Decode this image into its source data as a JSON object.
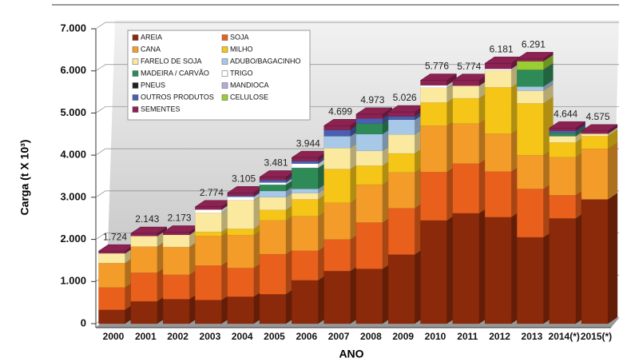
{
  "chart_data": {
    "type": "stacked-bar-3d",
    "y_label": "Carga (t X 10³)",
    "x_label": "ANO",
    "categories": [
      "2000",
      "2001",
      "2002",
      "2003",
      "2004",
      "2005",
      "2006",
      "2007",
      "2008",
      "2009",
      "2010",
      "2011",
      "2012",
      "2013",
      "2014(*)",
      "2015(*)"
    ],
    "ylim": [
      0,
      7000
    ],
    "yticks": [
      0,
      {
        "value": 1000,
        "label": "1.000"
      },
      {
        "value": 2000,
        "label": "2.000"
      },
      {
        "value": 3000,
        "label": "3.000"
      },
      {
        "value": 4000,
        "label": "4.000"
      },
      {
        "value": 5000,
        "label": "5.000"
      },
      {
        "value": 6000,
        "label": "6.000"
      },
      {
        "value": 7000,
        "label": "7.000"
      }
    ],
    "grid": true,
    "series": [
      {
        "name": "AREIA",
        "color": "#8b2a0a",
        "values": [
          330,
          530,
          580,
          560,
          640,
          700,
          1030,
          1250,
          1300,
          1640,
          2450,
          2620,
          2530,
          2050,
          2500,
          2950
        ]
      },
      {
        "name": "SOJA",
        "color": "#e8601c",
        "values": [
          530,
          680,
          580,
          820,
          680,
          950,
          700,
          750,
          1100,
          1100,
          1150,
          1180,
          1080,
          1150,
          550,
          0
        ]
      },
      {
        "name": "CANA",
        "color": "#f39c2a",
        "values": [
          580,
          620,
          660,
          700,
          780,
          800,
          820,
          870,
          900,
          850,
          1100,
          950,
          900,
          800,
          900,
          1200
        ]
      },
      {
        "name": "MILHO",
        "color": "#f5c518",
        "values": [
          0,
          0,
          0,
          100,
          150,
          250,
          400,
          800,
          450,
          450,
          550,
          600,
          1100,
          1230,
          350,
          300
        ]
      },
      {
        "name": "FARELO DE SOJA",
        "color": "#fbe9a0",
        "values": [
          230,
          250,
          290,
          450,
          680,
          300,
          150,
          500,
          350,
          450,
          350,
          300,
          400,
          300,
          150,
          60
        ]
      },
      {
        "name": "ADUBO/BAGACINHO",
        "color": "#a8c8e8",
        "values": [
          0,
          0,
          0,
          0,
          0,
          150,
          100,
          280,
          400,
          350,
          0,
          0,
          0,
          100,
          0,
          0
        ]
      },
      {
        "name": "MADEIRA / CARVÃO",
        "color": "#2e8b57",
        "values": [
          0,
          0,
          0,
          0,
          0,
          150,
          500,
          0,
          250,
          0,
          0,
          0,
          0,
          400,
          80,
          0
        ]
      },
      {
        "name": "TRIGO",
        "color": "#ffffff",
        "values": [
          0,
          0,
          0,
          80,
          80,
          50,
          100,
          0,
          0,
          0,
          60,
          0,
          40,
          0,
          0,
          0
        ]
      },
      {
        "name": "PNEUS",
        "color": "#222222",
        "values": [
          0,
          0,
          0,
          0,
          0,
          0,
          0,
          0,
          0,
          0,
          0,
          0,
          0,
          0,
          0,
          0
        ]
      },
      {
        "name": "MANDIOCA",
        "color": "#b8a9d9",
        "values": [
          0,
          0,
          0,
          0,
          0,
          0,
          0,
          0,
          0,
          0,
          0,
          0,
          0,
          0,
          0,
          0
        ]
      },
      {
        "name": "OUTROS PRODUTOS",
        "color": "#4a5fb0",
        "values": [
          0,
          0,
          0,
          0,
          30,
          60,
          60,
          150,
          120,
          80,
          0,
          0,
          0,
          0,
          50,
          0
        ]
      },
      {
        "name": "CELULOSE",
        "color": "#9acd32",
        "values": [
          0,
          0,
          0,
          0,
          0,
          0,
          0,
          0,
          0,
          0,
          0,
          0,
          0,
          200,
          0,
          0
        ]
      },
      {
        "name": "SEMENTES",
        "color": "#8b2252",
        "values": [
          54,
          63,
          63,
          64,
          65,
          71,
          84,
          99,
          103,
          106,
          116,
          124,
          131,
          61,
          64,
          65
        ]
      }
    ],
    "totals": {
      "values": [
        1724,
        2143,
        2173,
        2774,
        3105,
        3481,
        3944,
        4699,
        4973,
        5026,
        5776,
        5774,
        6181,
        6291,
        4644,
        4575
      ],
      "value_labels": [
        "1.724",
        "2.143",
        "2.173",
        "2.774",
        "3.105",
        "3.481",
        "3.944",
        "4.699",
        "4.973",
        "5.026",
        "5.776",
        "5.774",
        "6.181",
        "6.291",
        "4.644",
        "4.575"
      ]
    }
  }
}
